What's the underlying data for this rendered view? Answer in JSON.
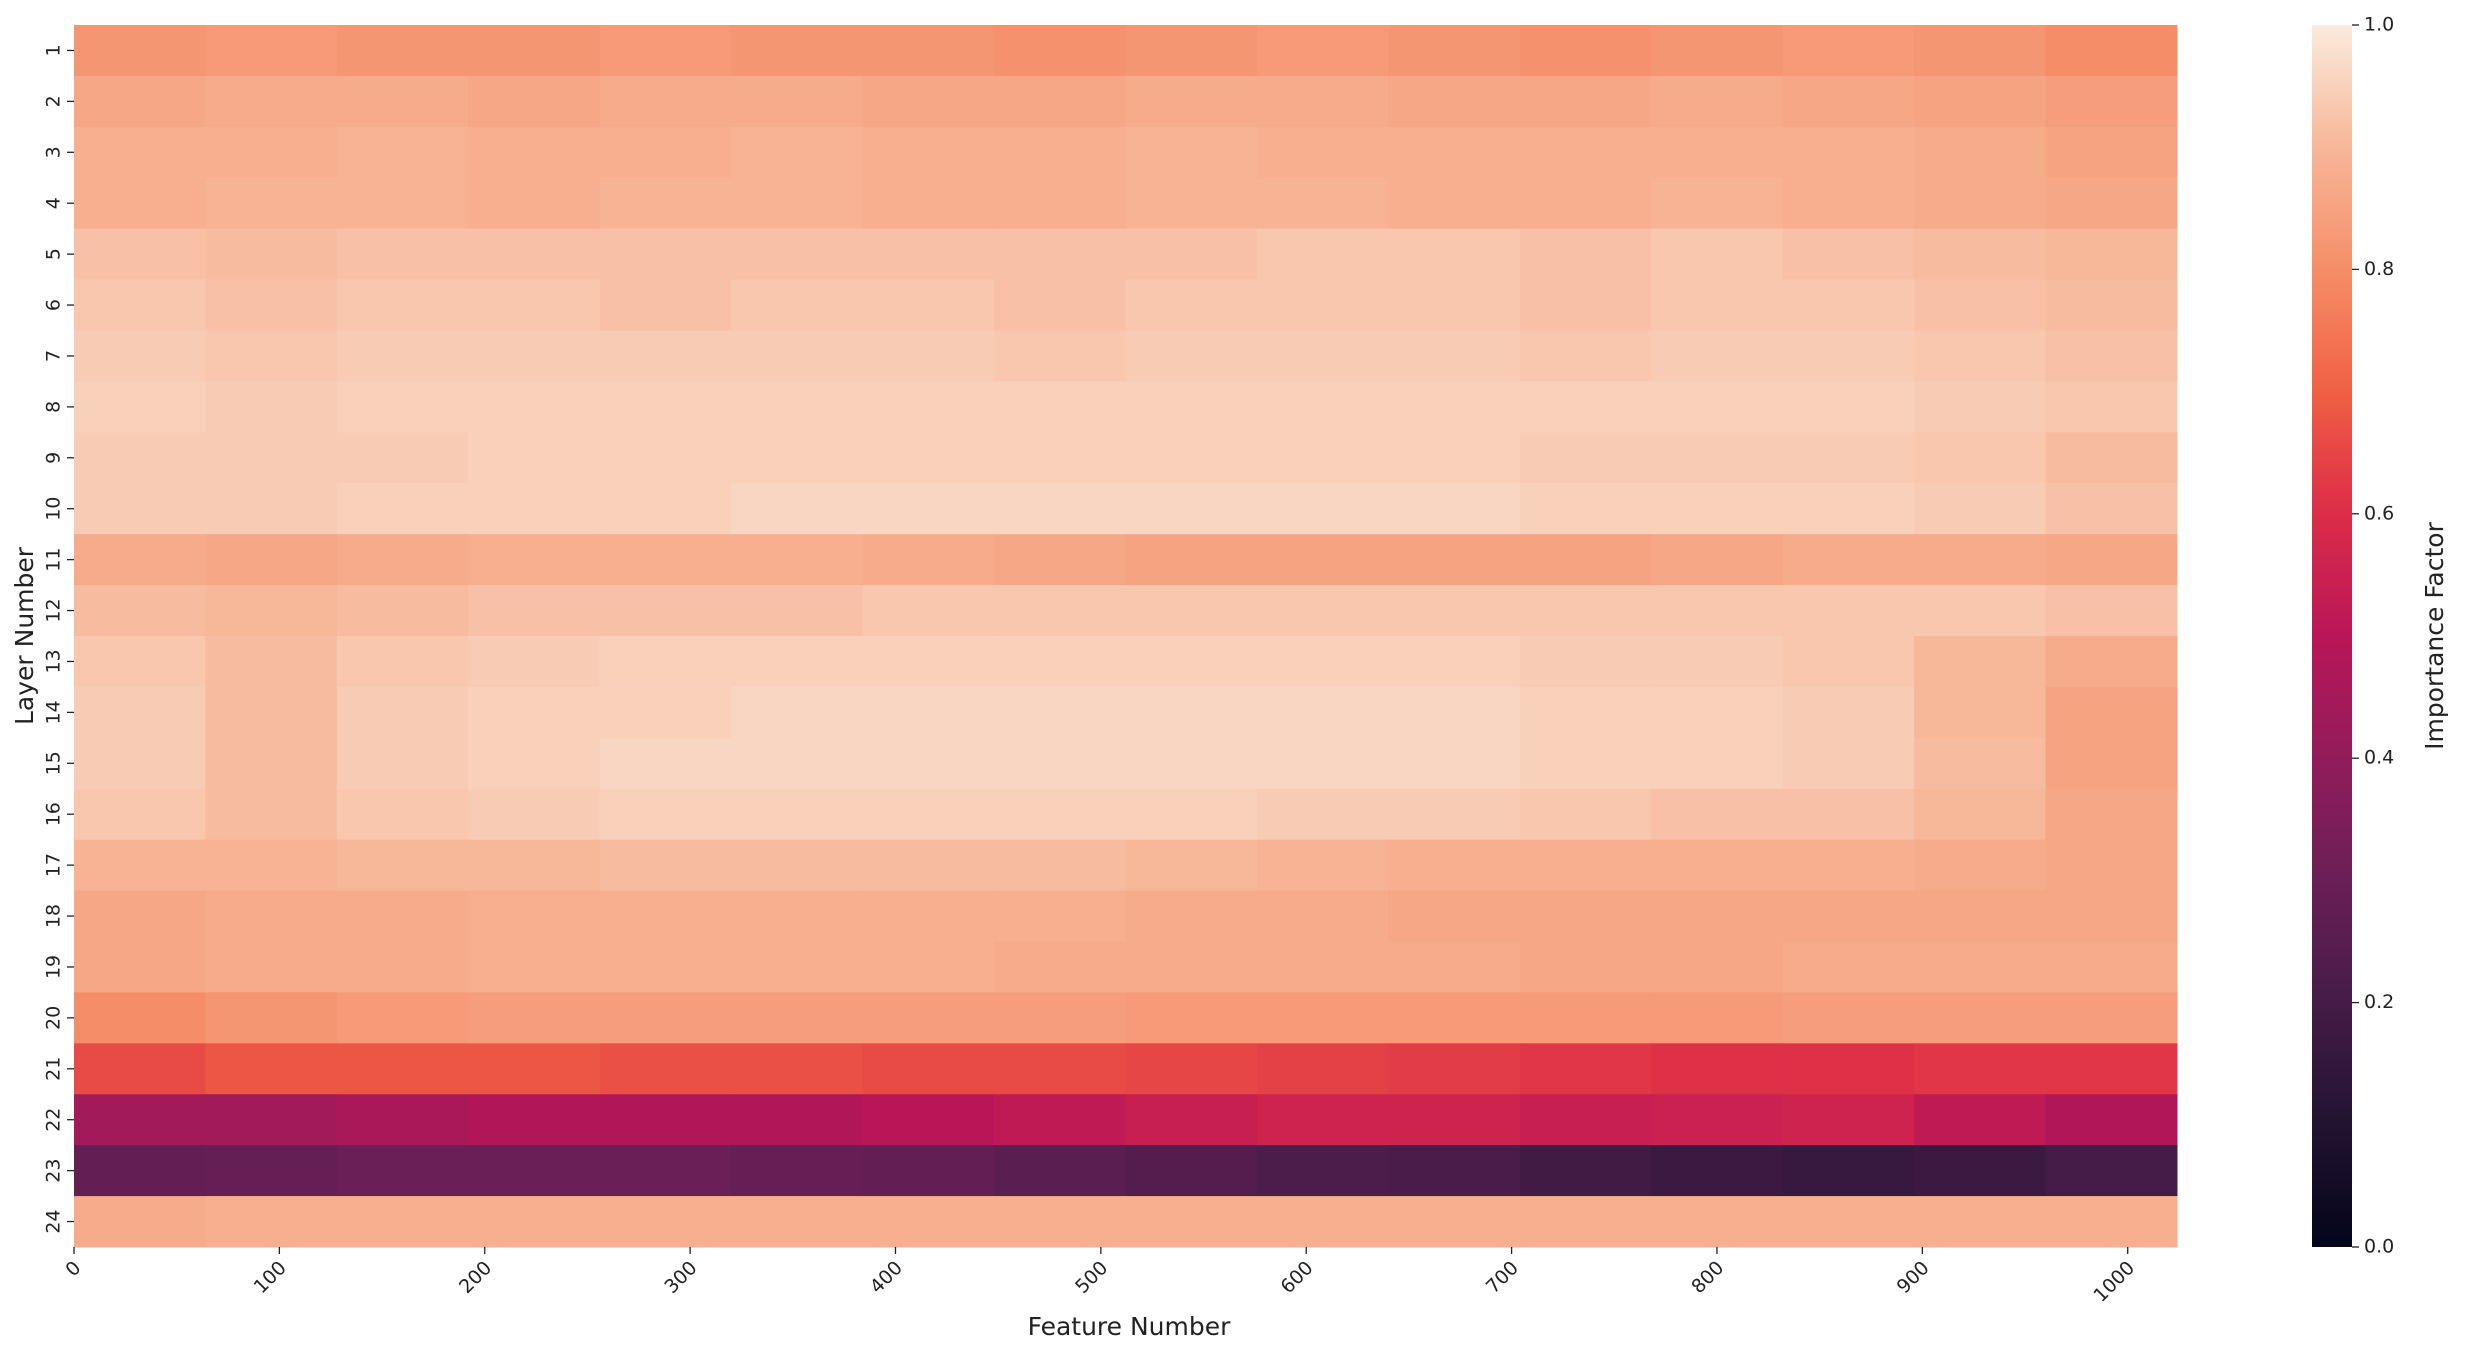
{
  "chart_data": {
    "type": "heatmap",
    "xlabel": "Feature Number",
    "ylabel": "Layer Number",
    "colorbar_label": "Importance Factor",
    "xlim": [
      0,
      1024
    ],
    "xticks": [
      0,
      100,
      200,
      300,
      400,
      500,
      600,
      700,
      800,
      900,
      1000
    ],
    "xbins": [
      0,
      64,
      128,
      192,
      256,
      320,
      384,
      448,
      512,
      576,
      640,
      704,
      768,
      832,
      896,
      960,
      1024
    ],
    "rows": [
      "1",
      "2",
      "3",
      "4",
      "5",
      "6",
      "7",
      "8",
      "9",
      "10",
      "11",
      "12",
      "13",
      "14",
      "15",
      "16",
      "17",
      "18",
      "19",
      "20",
      "21",
      "22",
      "23",
      "24"
    ],
    "values": [
      [
        0.82,
        0.83,
        0.82,
        0.82,
        0.83,
        0.82,
        0.82,
        0.81,
        0.82,
        0.83,
        0.82,
        0.81,
        0.82,
        0.83,
        0.82,
        0.8
      ],
      [
        0.86,
        0.87,
        0.87,
        0.86,
        0.87,
        0.87,
        0.86,
        0.86,
        0.87,
        0.87,
        0.86,
        0.86,
        0.87,
        0.86,
        0.85,
        0.84
      ],
      [
        0.88,
        0.88,
        0.89,
        0.88,
        0.88,
        0.89,
        0.88,
        0.88,
        0.89,
        0.88,
        0.88,
        0.88,
        0.88,
        0.88,
        0.87,
        0.85
      ],
      [
        0.88,
        0.89,
        0.89,
        0.88,
        0.89,
        0.89,
        0.88,
        0.88,
        0.89,
        0.89,
        0.88,
        0.88,
        0.89,
        0.88,
        0.87,
        0.86
      ],
      [
        0.92,
        0.91,
        0.92,
        0.92,
        0.92,
        0.92,
        0.92,
        0.92,
        0.92,
        0.93,
        0.93,
        0.92,
        0.93,
        0.92,
        0.91,
        0.9
      ],
      [
        0.93,
        0.92,
        0.93,
        0.93,
        0.92,
        0.93,
        0.93,
        0.92,
        0.93,
        0.93,
        0.93,
        0.92,
        0.93,
        0.93,
        0.92,
        0.91
      ],
      [
        0.94,
        0.93,
        0.94,
        0.94,
        0.94,
        0.94,
        0.94,
        0.93,
        0.94,
        0.94,
        0.94,
        0.93,
        0.94,
        0.94,
        0.93,
        0.92
      ],
      [
        0.95,
        0.94,
        0.95,
        0.95,
        0.95,
        0.95,
        0.95,
        0.95,
        0.95,
        0.95,
        0.95,
        0.95,
        0.95,
        0.95,
        0.94,
        0.93
      ],
      [
        0.94,
        0.94,
        0.94,
        0.95,
        0.95,
        0.95,
        0.95,
        0.95,
        0.95,
        0.95,
        0.95,
        0.94,
        0.94,
        0.94,
        0.93,
        0.91
      ],
      [
        0.94,
        0.94,
        0.95,
        0.95,
        0.95,
        0.96,
        0.96,
        0.96,
        0.96,
        0.96,
        0.96,
        0.95,
        0.95,
        0.95,
        0.94,
        0.92
      ],
      [
        0.87,
        0.86,
        0.87,
        0.88,
        0.88,
        0.88,
        0.87,
        0.86,
        0.85,
        0.85,
        0.85,
        0.85,
        0.86,
        0.87,
        0.87,
        0.86
      ],
      [
        0.91,
        0.9,
        0.91,
        0.92,
        0.92,
        0.92,
        0.93,
        0.93,
        0.93,
        0.93,
        0.93,
        0.93,
        0.93,
        0.93,
        0.93,
        0.92
      ],
      [
        0.93,
        0.91,
        0.93,
        0.94,
        0.95,
        0.95,
        0.95,
        0.95,
        0.95,
        0.95,
        0.95,
        0.94,
        0.94,
        0.93,
        0.9,
        0.87
      ],
      [
        0.94,
        0.91,
        0.94,
        0.95,
        0.95,
        0.96,
        0.96,
        0.96,
        0.96,
        0.96,
        0.96,
        0.95,
        0.95,
        0.94,
        0.9,
        0.85
      ],
      [
        0.94,
        0.91,
        0.94,
        0.95,
        0.96,
        0.96,
        0.96,
        0.96,
        0.96,
        0.96,
        0.96,
        0.95,
        0.95,
        0.94,
        0.91,
        0.85
      ],
      [
        0.93,
        0.91,
        0.93,
        0.94,
        0.95,
        0.95,
        0.95,
        0.95,
        0.95,
        0.94,
        0.94,
        0.93,
        0.92,
        0.92,
        0.9,
        0.86
      ],
      [
        0.89,
        0.89,
        0.9,
        0.9,
        0.91,
        0.91,
        0.91,
        0.91,
        0.9,
        0.89,
        0.88,
        0.88,
        0.88,
        0.88,
        0.87,
        0.86
      ],
      [
        0.86,
        0.87,
        0.87,
        0.88,
        0.88,
        0.88,
        0.88,
        0.88,
        0.87,
        0.87,
        0.86,
        0.86,
        0.86,
        0.86,
        0.86,
        0.86
      ],
      [
        0.86,
        0.87,
        0.87,
        0.88,
        0.88,
        0.88,
        0.88,
        0.87,
        0.87,
        0.87,
        0.87,
        0.86,
        0.86,
        0.87,
        0.87,
        0.87
      ],
      [
        0.8,
        0.82,
        0.83,
        0.84,
        0.84,
        0.84,
        0.84,
        0.84,
        0.83,
        0.83,
        0.83,
        0.83,
        0.83,
        0.84,
        0.84,
        0.84
      ],
      [
        0.66,
        0.68,
        0.68,
        0.68,
        0.67,
        0.67,
        0.66,
        0.66,
        0.65,
        0.64,
        0.63,
        0.62,
        0.61,
        0.61,
        0.62,
        0.62
      ],
      [
        0.44,
        0.44,
        0.46,
        0.48,
        0.48,
        0.48,
        0.5,
        0.52,
        0.54,
        0.56,
        0.56,
        0.54,
        0.55,
        0.56,
        0.52,
        0.48
      ],
      [
        0.28,
        0.29,
        0.3,
        0.3,
        0.3,
        0.29,
        0.28,
        0.26,
        0.24,
        0.22,
        0.21,
        0.19,
        0.17,
        0.16,
        0.17,
        0.2
      ],
      [
        0.87,
        0.88,
        0.88,
        0.88,
        0.88,
        0.88,
        0.88,
        0.88,
        0.88,
        0.88,
        0.88,
        0.88,
        0.88,
        0.88,
        0.88,
        0.88
      ]
    ],
    "clim": [
      0,
      1
    ],
    "cticks": [
      {
        "value": 0,
        "label": "0.0"
      },
      0.2,
      0.4,
      0.6,
      0.8,
      {
        "value": 1,
        "label": "1.0"
      }
    ],
    "colormap": [
      "#03051a",
      "#221331",
      "#451c47",
      "#6a1f56",
      "#921c5b",
      "#b91657",
      "#dc2c49",
      "#f06043",
      "#f58e68",
      "#f7b799",
      "#faebdd"
    ]
  }
}
